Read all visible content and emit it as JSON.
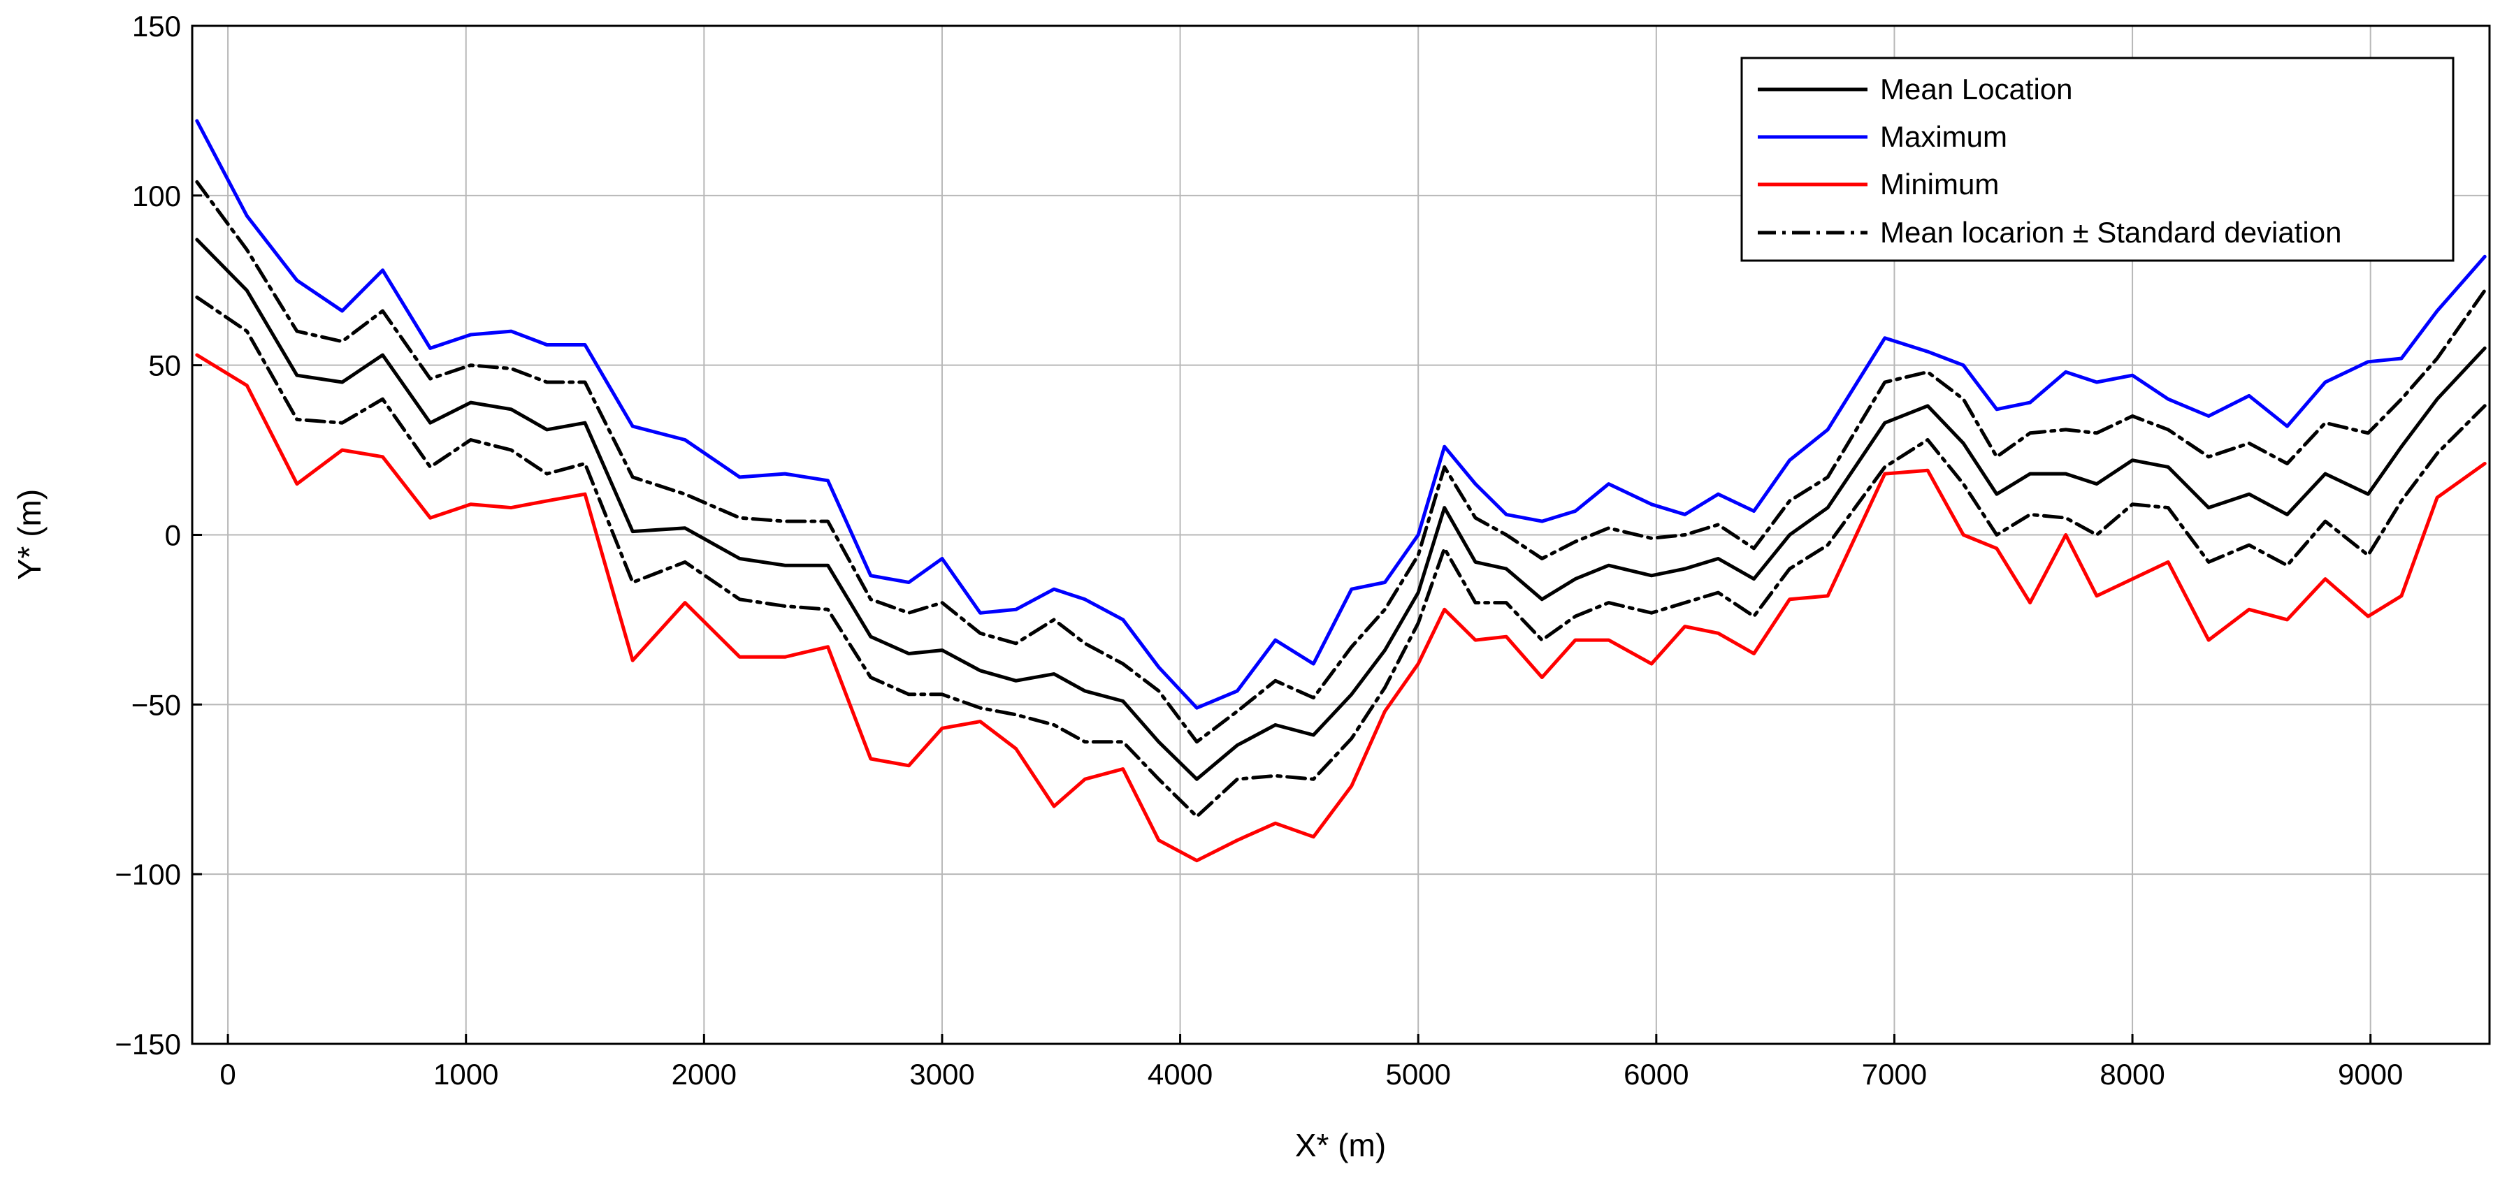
{
  "chart_data": {
    "type": "line",
    "title": "",
    "xlabel": "X* (m)",
    "ylabel": "Y* (m)",
    "xlim": [
      -150,
      9500
    ],
    "ylim": [
      -150,
      150
    ],
    "xticks": [
      0,
      1000,
      2000,
      3000,
      4000,
      5000,
      6000,
      7000,
      8000,
      9000
    ],
    "yticks": [
      -150,
      -100,
      -50,
      0,
      50,
      100,
      150
    ],
    "ytick_labels": [
      "−150",
      "−100",
      "−50",
      "0",
      "50",
      "100",
      "150"
    ],
    "grid": true,
    "legend_position": "top-right",
    "legend": {
      "mean": "Mean Location",
      "max": "Maximum",
      "min": "Minimum",
      "std": "Mean locarion ± Standard deviation"
    },
    "x": [
      -130,
      80,
      290,
      480,
      650,
      850,
      1020,
      1190,
      1340,
      1500,
      1700,
      1920,
      2150,
      2340,
      2520,
      2700,
      2860,
      3000,
      3160,
      3310,
      3470,
      3600,
      3760,
      3910,
      4070,
      4240,
      4400,
      4560,
      4720,
      4860,
      5000,
      5110,
      5240,
      5370,
      5520,
      5660,
      5800,
      5980,
      6120,
      6260,
      6410,
      6560,
      6720,
      6960,
      7140,
      7290,
      7430,
      7570,
      7720,
      7850,
      8000,
      8150,
      8320,
      8490,
      8650,
      8810,
      8990,
      9130,
      9280,
      9480
    ],
    "series": [
      {
        "key": "max",
        "color": "#0000ff",
        "values": [
          122,
          94,
          75,
          66,
          78,
          55,
          59,
          60,
          56,
          56,
          32,
          28,
          17,
          18,
          16,
          -12,
          -14,
          -7,
          -23,
          -22,
          -16,
          -19,
          -25,
          -39,
          -51,
          -46,
          -31,
          -38,
          -16,
          -14,
          0,
          26,
          15,
          6,
          4,
          7,
          15,
          9,
          6,
          12,
          7,
          22,
          31,
          58,
          54,
          50,
          37,
          39,
          48,
          45,
          47,
          40,
          35,
          41,
          32,
          45,
          51,
          52,
          66,
          82
        ]
      },
      {
        "key": "std_upper",
        "color": "#000000",
        "values": [
          104,
          84,
          60,
          57,
          66,
          46,
          50,
          49,
          45,
          45,
          17,
          12,
          5,
          4,
          4,
          -19,
          -23,
          -20,
          -29,
          -32,
          -25,
          -32,
          -38,
          -46,
          -61,
          -52,
          -43,
          -48,
          -33,
          -22,
          -6,
          20,
          5,
          0,
          -7,
          -2,
          2,
          -1,
          0,
          3,
          -4,
          10,
          17,
          45,
          48,
          40,
          23,
          30,
          31,
          30,
          35,
          31,
          23,
          27,
          21,
          33,
          30,
          40,
          52,
          72
        ]
      },
      {
        "key": "mean",
        "color": "#000000",
        "values": [
          87,
          72,
          47,
          45,
          53,
          33,
          39,
          37,
          31,
          33,
          1,
          2,
          -7,
          -9,
          -9,
          -30,
          -35,
          -34,
          -40,
          -43,
          -41,
          -46,
          -49,
          -61,
          -72,
          -62,
          -56,
          -59,
          -47,
          -34,
          -17,
          8,
          -8,
          -10,
          -19,
          -13,
          -9,
          -12,
          -10,
          -7,
          -13,
          0,
          8,
          33,
          38,
          27,
          12,
          18,
          18,
          15,
          22,
          20,
          8,
          12,
          6,
          18,
          12,
          26,
          40,
          55
        ]
      },
      {
        "key": "std_lower",
        "color": "#000000",
        "values": [
          70,
          60,
          34,
          33,
          40,
          20,
          28,
          25,
          18,
          21,
          -14,
          -8,
          -19,
          -21,
          -22,
          -42,
          -47,
          -47,
          -51,
          -53,
          -56,
          -61,
          -61,
          -72,
          -83,
          -72,
          -71,
          -72,
          -60,
          -45,
          -26,
          -4,
          -20,
          -20,
          -31,
          -24,
          -20,
          -23,
          -20,
          -17,
          -24,
          -10,
          -3,
          20,
          28,
          15,
          0,
          6,
          5,
          0,
          9,
          8,
          -8,
          -3,
          -9,
          4,
          -6,
          10,
          24,
          38
        ]
      },
      {
        "key": "min",
        "color": "#ff0000",
        "values": [
          53,
          44,
          15,
          25,
          23,
          5,
          9,
          8,
          10,
          12,
          -37,
          -20,
          -36,
          -36,
          -33,
          -66,
          -68,
          -57,
          -55,
          -63,
          -80,
          -72,
          -69,
          -90,
          -96,
          -90,
          -85,
          -89,
          -74,
          -52,
          -38,
          -22,
          -31,
          -30,
          -42,
          -31,
          -31,
          -38,
          -27,
          -29,
          -35,
          -19,
          -18,
          18,
          19,
          0,
          -4,
          -20,
          0,
          -18,
          -13,
          -8,
          -31,
          -22,
          -25,
          -13,
          -24,
          -18,
          11,
          21
        ]
      }
    ]
  }
}
